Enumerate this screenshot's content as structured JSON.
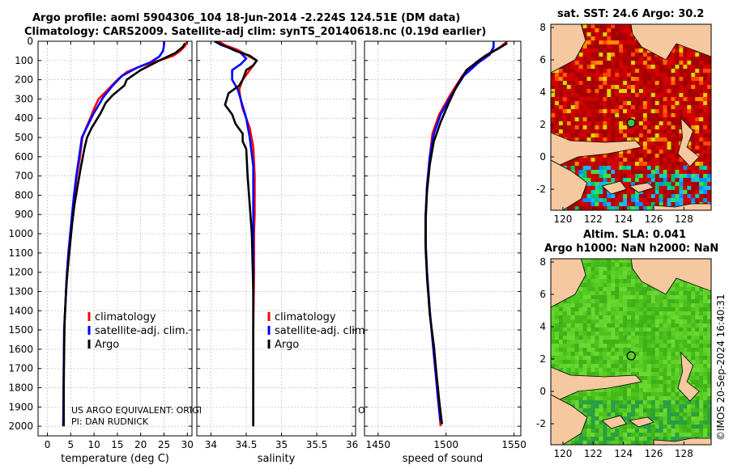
{
  "title_line1": "Argo profile: aoml 5904306_104 18-Jun-2014 -2.224S 124.51E (DM data)",
  "title_line2": "Climatology: CARS2009. Satellite-adj clim: synTS_20140618.nc (0.19d earlier)",
  "map_sst_title": "sat. SST: 24.6 Argo: 30.2",
  "map_sla_title1": "Altim. SLA: 0.041",
  "map_sla_title2": "Argo h1000: NaN h2000: NaN",
  "watermark": "©IMOS 20-Sep-2024 16:40:31",
  "note_line1": "US ARGO EQUIVALENT: ORIGI",
  "note_line2": "PI: DAN RUDNICK",
  "note_stray": "O",
  "colors": {
    "climatology": "#ff0000",
    "satellite": "#0000ff",
    "argo": "#000000"
  },
  "chart_data": [
    {
      "type": "line",
      "id": "temperature",
      "xlabel": "temperature (deg C)",
      "xlim": [
        -2,
        31
      ],
      "xticks": [
        0,
        5,
        10,
        15,
        20,
        25,
        30
      ],
      "ylim": [
        2050,
        0
      ],
      "yticks": [
        0,
        100,
        200,
        300,
        400,
        500,
        600,
        700,
        800,
        900,
        1000,
        1100,
        1200,
        1300,
        1400,
        1500,
        1600,
        1700,
        1800,
        1900,
        2000
      ],
      "legend": [
        "climatology",
        "satellite-adj. clim.",
        "Argo"
      ],
      "series": [
        {
          "name": "climatology",
          "color": "#ff0000",
          "x": [
            30,
            29.5,
            28.5,
            27,
            24,
            20,
            17,
            15,
            13,
            11,
            10,
            9.2,
            8.3,
            7.5,
            7,
            6.3,
            5.8,
            5.4,
            5,
            4.6,
            4.3,
            4,
            3.8,
            3.6,
            3.5,
            3.4
          ],
          "y": [
            0,
            25,
            50,
            75,
            100,
            130,
            160,
            200,
            250,
            300,
            350,
            400,
            450,
            500,
            600,
            700,
            800,
            900,
            1000,
            1100,
            1200,
            1300,
            1400,
            1500,
            1700,
            2000
          ]
        },
        {
          "name": "satellite-adj. clim.",
          "color": "#0000ff",
          "x": [
            25,
            25,
            24.8,
            24,
            22,
            19,
            16,
            14,
            12,
            10.8,
            9.8,
            9,
            8.2,
            7.4,
            6.8,
            6.2,
            5.7,
            5.3,
            4.9,
            4.5,
            4.2,
            4,
            3.8,
            3.6,
            3.5,
            3.4
          ],
          "y": [
            0,
            20,
            50,
            80,
            110,
            140,
            180,
            230,
            290,
            340,
            380,
            420,
            460,
            500,
            600,
            700,
            800,
            900,
            1000,
            1100,
            1200,
            1300,
            1400,
            1500,
            1700,
            2000
          ]
        },
        {
          "name": "Argo",
          "color": "#000000",
          "x": [
            29.5,
            29,
            27.5,
            24,
            20,
            17,
            16.5,
            14,
            12.5,
            11.5,
            10.5,
            9.5,
            8.5,
            8,
            7.2,
            6.5,
            5.8,
            5.3,
            4.9,
            4.5,
            4.1,
            3.9,
            3.7,
            3.6,
            3.5,
            3.5
          ],
          "y": [
            10,
            30,
            60,
            100,
            150,
            200,
            230,
            280,
            320,
            370,
            410,
            450,
            500,
            550,
            650,
            750,
            850,
            950,
            1050,
            1150,
            1250,
            1350,
            1450,
            1600,
            1800,
            2000
          ]
        }
      ]
    },
    {
      "type": "line",
      "id": "salinity",
      "xlabel": "salinity",
      "xlim": [
        33.8,
        36.05
      ],
      "xticks": [
        34,
        34.5,
        35,
        35.5,
        36
      ],
      "ylim": [
        2050,
        0
      ],
      "legend": [
        "climatology",
        "satellite-adj. clim.",
        "Argo"
      ],
      "series": [
        {
          "name": "climatology",
          "color": "#ff0000",
          "x": [
            34.1,
            34.2,
            34.38,
            34.5,
            34.65,
            34.55,
            34.45,
            34.4,
            34.42,
            34.45,
            34.55,
            34.6,
            34.62,
            34.62,
            34.61,
            34.61,
            34.6,
            34.6,
            34.6
          ],
          "y": [
            0,
            20,
            45,
            70,
            100,
            150,
            200,
            250,
            300,
            350,
            450,
            550,
            700,
            900,
            1000,
            1200,
            1500,
            1800,
            2000
          ]
        },
        {
          "name": "satellite-adj. clim.",
          "color": "#0000ff",
          "x": [
            34.05,
            34.15,
            34.3,
            34.42,
            34.5,
            34.42,
            34.3,
            34.3,
            34.38,
            34.42,
            34.5,
            34.55,
            34.6,
            34.6,
            34.6,
            34.6,
            34.6,
            34.6
          ],
          "y": [
            0,
            20,
            40,
            60,
            90,
            120,
            150,
            200,
            250,
            300,
            400,
            500,
            650,
            900,
            1100,
            1300,
            1600,
            2000
          ]
        },
        {
          "name": "Argo",
          "color": "#000000",
          "x": [
            34.05,
            34.2,
            34.35,
            34.55,
            34.65,
            34.6,
            34.5,
            34.45,
            34.4,
            34.25,
            34.2,
            34.3,
            34.35,
            34.45,
            34.45,
            34.5,
            34.52,
            34.55,
            34.58,
            34.6,
            34.6,
            34.6
          ],
          "y": [
            0,
            25,
            50,
            75,
            100,
            125,
            150,
            200,
            230,
            270,
            330,
            380,
            430,
            480,
            520,
            560,
            700,
            850,
            1000,
            1300,
            1600,
            2000
          ]
        }
      ]
    },
    {
      "type": "line",
      "id": "sound_speed",
      "xlabel": "speed of sound",
      "xlim": [
        1440,
        1555
      ],
      "xticks": [
        1450,
        1500,
        1550
      ],
      "ylim": [
        2050,
        0
      ],
      "series": [
        {
          "name": "climatology",
          "color": "#ff0000",
          "x": [
            1545,
            1540,
            1530,
            1522,
            1512,
            1503,
            1495,
            1490,
            1488,
            1486,
            1485,
            1485,
            1486,
            1488,
            1490,
            1492,
            1494,
            1496
          ],
          "y": [
            0,
            30,
            70,
            110,
            180,
            280,
            380,
            480,
            600,
            750,
            900,
            1050,
            1200,
            1400,
            1550,
            1700,
            1850,
            2000
          ]
        },
        {
          "name": "satellite-adj. clim.",
          "color": "#0000ff",
          "x": [
            1535,
            1535,
            1532,
            1524,
            1513,
            1504,
            1496,
            1491,
            1488,
            1486,
            1485,
            1485,
            1486,
            1488,
            1490,
            1492,
            1494,
            1496
          ],
          "y": [
            0,
            30,
            70,
            110,
            180,
            280,
            380,
            480,
            600,
            750,
            900,
            1050,
            1200,
            1400,
            1550,
            1700,
            1850,
            1980
          ]
        },
        {
          "name": "Argo",
          "color": "#000000",
          "x": [
            1545,
            1538,
            1528,
            1515,
            1508,
            1502,
            1496,
            1491,
            1488,
            1486,
            1485,
            1485,
            1486,
            1488,
            1491,
            1493,
            1495,
            1497
          ],
          "y": [
            10,
            40,
            80,
            150,
            230,
            320,
            420,
            520,
            640,
            780,
            930,
            1080,
            1230,
            1420,
            1580,
            1730,
            1870,
            1990
          ]
        }
      ]
    },
    {
      "type": "heatmap",
      "id": "sst_map",
      "title": "sat. SST: 24.6 Argo: 30.2",
      "xticks": [
        120,
        122,
        124,
        126,
        128
      ],
      "yticks": [
        8,
        6,
        4,
        2,
        0,
        -2
      ],
      "xlim": [
        119.2,
        129.8
      ],
      "ylim": [
        -3.3,
        8.2
      ],
      "argo_marker": {
        "lon": 124.51,
        "lat": 2.1
      }
    },
    {
      "type": "heatmap",
      "id": "sla_map",
      "title": "Altim. SLA: 0.041 / Argo h1000: NaN h2000: NaN",
      "xticks": [
        120,
        122,
        124,
        126,
        128
      ],
      "yticks": [
        8,
        6,
        4,
        2,
        0,
        -2
      ],
      "xlim": [
        119.2,
        129.8
      ],
      "ylim": [
        -3.3,
        8.2
      ],
      "argo_marker": {
        "lon": 124.51,
        "lat": 2.2
      }
    }
  ]
}
